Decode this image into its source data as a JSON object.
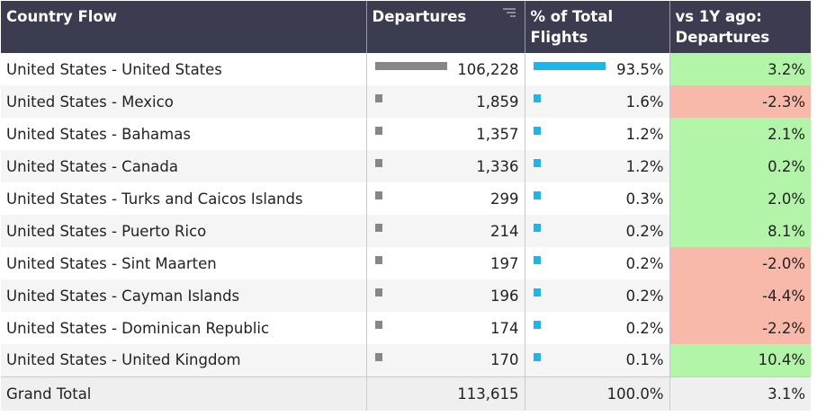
{
  "headers": {
    "country": "Country Flow",
    "departures": "Departures",
    "pct_line1": "% of Total",
    "pct_line2": "Flights",
    "yoy_line1": "vs 1Y ago:",
    "yoy_line2": "Departures"
  },
  "colors": {
    "header_bg": "#3b3c4f",
    "departures_bar": "#878787",
    "pct_bar": "#1ab8ea",
    "positive": "#b3f5a8",
    "negative": "#f8b9aa"
  },
  "chart_data": {
    "type": "table",
    "columns": [
      "Country Flow",
      "Departures",
      "% of Total Flights",
      "vs 1Y ago: Departures"
    ],
    "rows": [
      {
        "flow": "United States - United States",
        "departures": "106,228",
        "departures_value": 106228,
        "pct": "93.5%",
        "pct_value": 93.5,
        "yoy": "3.2%",
        "yoy_value": 3.2
      },
      {
        "flow": "United States - Mexico",
        "departures": "1,859",
        "departures_value": 1859,
        "pct": "1.6%",
        "pct_value": 1.6,
        "yoy": "-2.3%",
        "yoy_value": -2.3
      },
      {
        "flow": "United States - Bahamas",
        "departures": "1,357",
        "departures_value": 1357,
        "pct": "1.2%",
        "pct_value": 1.2,
        "yoy": "2.1%",
        "yoy_value": 2.1
      },
      {
        "flow": "United States - Canada",
        "departures": "1,336",
        "departures_value": 1336,
        "pct": "1.2%",
        "pct_value": 1.2,
        "yoy": "0.2%",
        "yoy_value": 0.2
      },
      {
        "flow": "United States - Turks and Caicos Islands",
        "departures": "299",
        "departures_value": 299,
        "pct": "0.3%",
        "pct_value": 0.3,
        "yoy": "2.0%",
        "yoy_value": 2.0
      },
      {
        "flow": "United States - Puerto Rico",
        "departures": "214",
        "departures_value": 214,
        "pct": "0.2%",
        "pct_value": 0.2,
        "yoy": "8.1%",
        "yoy_value": 8.1
      },
      {
        "flow": "United States - Sint Maarten",
        "departures": "197",
        "departures_value": 197,
        "pct": "0.2%",
        "pct_value": 0.2,
        "yoy": "-2.0%",
        "yoy_value": -2.0
      },
      {
        "flow": "United States - Cayman Islands",
        "departures": "196",
        "departures_value": 196,
        "pct": "0.2%",
        "pct_value": 0.2,
        "yoy": "-4.4%",
        "yoy_value": -4.4
      },
      {
        "flow": "United States - Dominican Republic",
        "departures": "174",
        "departures_value": 174,
        "pct": "0.2%",
        "pct_value": 0.2,
        "yoy": "-2.2%",
        "yoy_value": -2.2
      },
      {
        "flow": "United States - United Kingdom",
        "departures": "170",
        "departures_value": 170,
        "pct": "0.1%",
        "pct_value": 0.1,
        "yoy": "10.4%",
        "yoy_value": 10.4
      }
    ],
    "total": {
      "flow": "Grand Total",
      "departures": "113,615",
      "pct": "100.0%",
      "yoy": "3.1%"
    }
  }
}
